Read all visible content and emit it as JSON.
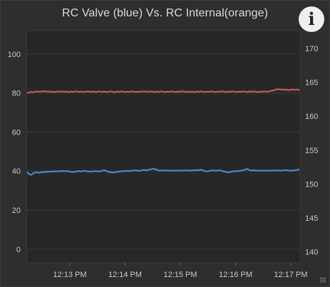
{
  "chart_data": {
    "type": "line",
    "title": "RC Valve (blue) Vs. RC Internal(orange)",
    "x_ticks": [
      "12:13 PM",
      "12:14 PM",
      "12:15 PM",
      "12:16 PM",
      "12:17 PM"
    ],
    "y_left": {
      "ticks": [
        0,
        20,
        40,
        60,
        80,
        100
      ],
      "ylim": [
        -7,
        112
      ]
    },
    "y_right": {
      "ticks": [
        140,
        145,
        150,
        155,
        160,
        165,
        170
      ],
      "ylim": [
        138.4,
        172.6
      ]
    },
    "grid": true,
    "series": [
      {
        "axis": "left",
        "color": "#4f86c6",
        "values": [
          39.5,
          38.5,
          38,
          39,
          39.2,
          39.4,
          39.1,
          39.5,
          39.4,
          39.7,
          39.6,
          39.8,
          39.7,
          39.9,
          39.8,
          40,
          39.9,
          40.1,
          39.9,
          40,
          39.8,
          39.6,
          39.5,
          39.7,
          39.9,
          40,
          39.8,
          40.1,
          40,
          39.9,
          39.7,
          39.8,
          39.9,
          40,
          39.8,
          39.9,
          40.2,
          40.4,
          39.9,
          39.6,
          39.4,
          39.3,
          39.4,
          39.6,
          39.8,
          39.9,
          40,
          40,
          40.1,
          40,
          40.2,
          40.3,
          40.4,
          40.1,
          40.2,
          40.5,
          40.6,
          40.3,
          40.7,
          40.9,
          41.1,
          41,
          40.7,
          40.2,
          40.3,
          40.2,
          40.4,
          40.2,
          40.3,
          40.2,
          40.3,
          40.2,
          40.3,
          40.2,
          40.3,
          40.2,
          40.4,
          40.3,
          40.2,
          40.3,
          40.4,
          40.5,
          40.4,
          40.8,
          40.3,
          40,
          39.8,
          40,
          40.4,
          40.2,
          40.3,
          40.2,
          40.5,
          40.1,
          39.8,
          39.6,
          39.3,
          39.5,
          39.8,
          40,
          39.9,
          40,
          40.2,
          40.4,
          40.7,
          41.1,
          40.6,
          40.2,
          40.4,
          40.3,
          40.2,
          40.3,
          40.2,
          40.3,
          40.2,
          40.3,
          40.2,
          40.3,
          40.2,
          40.4,
          40.3,
          40.2,
          40.3,
          40.5,
          40.4,
          40.3,
          40.2,
          40.3,
          40.4,
          40.6,
          40.9
        ]
      },
      {
        "axis": "left",
        "color": "#c05a5a",
        "values": [
          80.1,
          80.3,
          80.6,
          80.4,
          80.7,
          80.9,
          80.6,
          80.8,
          81,
          80.7,
          80.9,
          80.6,
          80.8,
          80.5,
          80.7,
          80.9,
          80.6,
          80.8,
          80.6,
          80.7,
          80.5,
          80.8,
          80.6,
          80.9,
          80.7,
          80.6,
          80.8,
          80.5,
          80.7,
          80.9,
          80.6,
          80.8,
          80.7,
          80.5,
          80.9,
          80.7,
          80.6,
          80.8,
          80.5,
          80.7,
          80.9,
          80.6,
          80.4,
          80.8,
          80.6,
          80.9,
          80.7,
          80.5,
          80.8,
          80.6,
          80.9,
          80.7,
          80.5,
          80.8,
          80.6,
          80.9,
          80.7,
          80.8,
          80.6,
          80.9,
          80.7,
          80.5,
          80.8,
          80.6,
          80.9,
          80.7,
          80.5,
          80.8,
          80.6,
          80.9,
          80.7,
          80.5,
          80.8,
          80.6,
          80.9,
          80.7,
          80.5,
          80.8,
          80.6,
          80.7,
          80.5,
          80.8,
          80.6,
          80.9,
          80.7,
          80.5,
          80.8,
          80.6,
          80.9,
          80.7,
          80.5,
          80.8,
          80.6,
          80.9,
          80.7,
          80.5,
          80.8,
          80.6,
          80.9,
          80.7,
          80.5,
          80.8,
          80.6,
          80.9,
          80.7,
          80.5,
          80.8,
          80.6,
          80.9,
          80.7,
          80.5,
          80.8,
          80.6,
          80.9,
          80.7,
          80.8,
          81,
          81.2,
          81.5,
          81.8,
          82,
          81.7,
          81.9,
          81.6,
          81.8,
          81.5,
          81.7,
          81.9,
          81.6,
          81.8,
          81.4
        ]
      }
    ]
  }
}
